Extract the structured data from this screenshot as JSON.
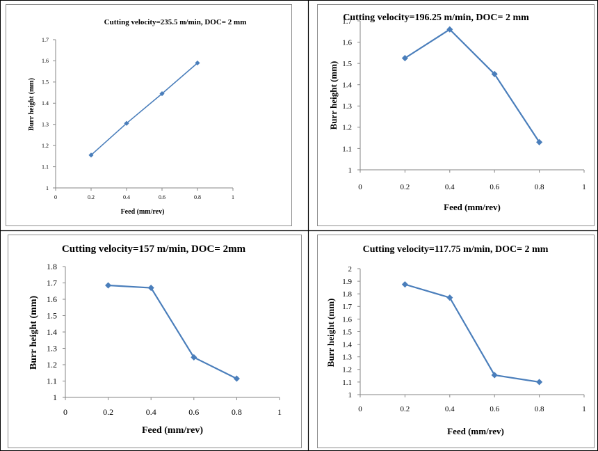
{
  "chart_data": [
    {
      "type": "line",
      "title": "Cutting velocity=235.5 m/min, DOC= 2 mm",
      "xlabel": "Feed (mm/rev)",
      "ylabel": "Burr height (mm)",
      "xlim": [
        0,
        1
      ],
      "ylim": [
        1,
        1.7
      ],
      "xticks": [
        0,
        0.2,
        0.4,
        0.6,
        0.8,
        1
      ],
      "yticks": [
        1,
        1.1,
        1.2,
        1.3,
        1.4,
        1.5,
        1.6,
        1.7
      ],
      "x": [
        0.2,
        0.4,
        0.6,
        0.8
      ],
      "series": [
        {
          "values": [
            1.155,
            1.305,
            1.445,
            1.59
          ]
        }
      ],
      "grid": false,
      "color": "#4a7ebb"
    },
    {
      "type": "line",
      "title": "Cutting velocity=196.25 m/min, DOC= 2 mm",
      "xlabel": "Feed (mm/rev)",
      "ylabel": "Burr height (mm)",
      "xlim": [
        0,
        1
      ],
      "ylim": [
        1,
        1.7
      ],
      "xticks": [
        0,
        0.2,
        0.4,
        0.6,
        0.8,
        1
      ],
      "yticks": [
        1,
        1.1,
        1.2,
        1.3,
        1.4,
        1.5,
        1.6,
        1.7
      ],
      "x": [
        0.2,
        0.4,
        0.6,
        0.8
      ],
      "series": [
        {
          "values": [
            1.525,
            1.66,
            1.45,
            1.13
          ]
        }
      ],
      "grid": false,
      "color": "#4a7ebb"
    },
    {
      "type": "line",
      "title": "Cutting velocity=157 m/min, DOC= 2mm",
      "xlabel": "Feed (mm/rev)",
      "ylabel": "Burr height (mm)",
      "xlim": [
        0,
        1
      ],
      "ylim": [
        1,
        1.8
      ],
      "xticks": [
        0,
        0.2,
        0.4,
        0.6,
        0.8,
        1
      ],
      "yticks": [
        1,
        1.1,
        1.2,
        1.3,
        1.4,
        1.5,
        1.6,
        1.7,
        1.8
      ],
      "x": [
        0.2,
        0.4,
        0.6,
        0.8
      ],
      "series": [
        {
          "values": [
            1.685,
            1.67,
            1.245,
            1.115
          ]
        }
      ],
      "grid": false,
      "color": "#4a7ebb"
    },
    {
      "type": "line",
      "title": "Cutting velocity=117.75 m/min, DOC= 2 mm",
      "xlabel": "Feed (mm/rev)",
      "ylabel": "Burr height (mm)",
      "xlim": [
        0,
        1
      ],
      "ylim": [
        1,
        2
      ],
      "xticks": [
        0,
        0.2,
        0.4,
        0.6,
        0.8,
        1
      ],
      "yticks": [
        1,
        1.1,
        1.2,
        1.3,
        1.4,
        1.5,
        1.6,
        1.7,
        1.8,
        1.9,
        2
      ],
      "x": [
        0.2,
        0.4,
        0.6,
        0.8
      ],
      "series": [
        {
          "values": [
            1.875,
            1.77,
            1.155,
            1.1
          ]
        }
      ],
      "grid": false,
      "color": "#4a7ebb"
    }
  ]
}
